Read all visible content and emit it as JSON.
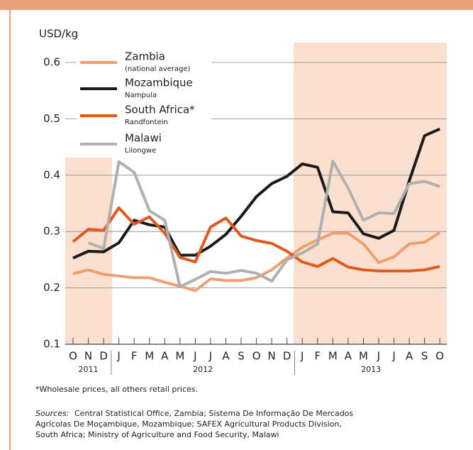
{
  "chart_data": {
    "type": "line",
    "y_label": "USD/kg",
    "categories": [
      "O",
      "N",
      "D",
      "J",
      "F",
      "M",
      "A",
      "M",
      "J",
      "J",
      "A",
      "S",
      "O",
      "N",
      "D",
      "J",
      "F",
      "M",
      "A",
      "M",
      "J",
      "J",
      "A",
      "S",
      "O"
    ],
    "year_labels": [
      "2011",
      "2012",
      "2013"
    ],
    "ylim": [
      0.1,
      0.6
    ],
    "yticks": [
      0.1,
      0.2,
      0.3,
      0.4,
      0.5,
      0.6
    ],
    "grid": true,
    "series": [
      {
        "name": "Zambia",
        "note": "(national average)",
        "color": "#f0a070",
        "values": [
          0.225,
          0.232,
          0.224,
          0.221,
          0.218,
          0.218,
          0.21,
          0.203,
          0.195,
          0.216,
          0.213,
          0.213,
          0.218,
          0.232,
          0.253,
          0.272,
          0.285,
          0.297,
          0.297,
          0.278,
          0.245,
          0.255,
          0.278,
          0.281,
          0.298
        ]
      },
      {
        "name": "Mozambique",
        "note": "Nampula",
        "color": "#1a1a1a",
        "values": [
          0.253,
          0.265,
          0.264,
          0.28,
          0.32,
          0.312,
          0.308,
          0.258,
          0.258,
          0.274,
          0.295,
          0.327,
          0.362,
          0.385,
          0.398,
          0.42,
          0.414,
          0.335,
          0.333,
          0.296,
          0.288,
          0.302,
          0.39,
          0.47,
          0.482
        ]
      },
      {
        "name": "South Africa*",
        "note": "Randfontein",
        "color": "#e05a20",
        "values": [
          0.282,
          0.304,
          0.302,
          0.342,
          0.313,
          0.326,
          0.297,
          0.254,
          0.246,
          0.308,
          0.324,
          0.292,
          0.284,
          0.279,
          0.265,
          0.246,
          0.238,
          0.252,
          0.237,
          0.232,
          0.23,
          0.23,
          0.23,
          0.232,
          0.238
        ]
      },
      {
        "name": "Malawi",
        "note": "Lilongwe",
        "color": "#b0b0b0",
        "values": [
          null,
          0.28,
          0.27,
          0.424,
          0.405,
          0.337,
          0.32,
          0.202,
          0.215,
          0.229,
          0.226,
          0.231,
          0.226,
          0.212,
          0.25,
          0.262,
          0.278,
          0.425,
          0.377,
          0.32,
          0.333,
          0.332,
          0.385,
          0.389,
          0.38
        ]
      }
    ],
    "footnote": "*Wholesale prices, all others retail prices.",
    "sources_label": "Sources:",
    "sources_lines": [
      "Central Statistical Office, Zambia; Sistema De Informação De Mercados",
      "Agrícolas De Moçambique, Mozambique; SAFEX Agricultural Products Division,",
      "South Africa; Ministry of Agriculture and Food Security, Malawi"
    ]
  }
}
